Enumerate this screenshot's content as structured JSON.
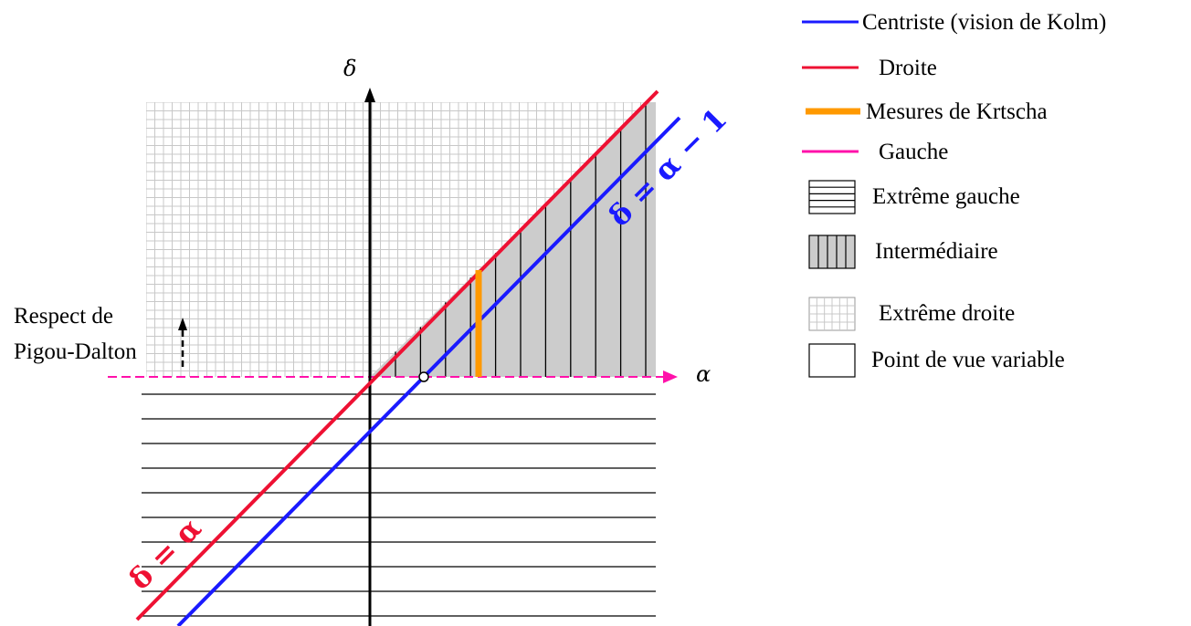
{
  "axes": {
    "x_label": "α",
    "y_label": "δ"
  },
  "annotation": {
    "line1": "Respect de",
    "line2": "Pigou-Dalton"
  },
  "equations": {
    "red_line": "δ = α",
    "blue_line": "δ = α − 1"
  },
  "colors": {
    "centriste": "#1a1aff",
    "droite": "#ee1133",
    "krtscha": "#ff9900",
    "gauche": "#ff11aa",
    "intermediaire_fill": "#cccccc",
    "grid": "#c8c8c8"
  },
  "legend": [
    {
      "key": "centriste",
      "label": "Centriste (vision de Kolm)",
      "swatch": "line",
      "color": "#1a1aff"
    },
    {
      "key": "droite",
      "label": "Droite",
      "swatch": "line",
      "color": "#ee1133"
    },
    {
      "key": "krtscha",
      "label": "Mesures de Krtscha",
      "swatch": "thick-line",
      "color": "#ff9900"
    },
    {
      "key": "gauche",
      "label": "Gauche",
      "swatch": "line",
      "color": "#ff11aa"
    },
    {
      "key": "extreme_gauche",
      "label": "Extrême gauche",
      "swatch": "horizontal-hatch"
    },
    {
      "key": "intermediaire",
      "label": "Intermédiaire",
      "swatch": "vertical-hatch-gray"
    },
    {
      "key": "extreme_droite",
      "label": "Extrême droite",
      "swatch": "grid"
    },
    {
      "key": "variable",
      "label": "Point de vue variable",
      "swatch": "empty"
    }
  ]
}
